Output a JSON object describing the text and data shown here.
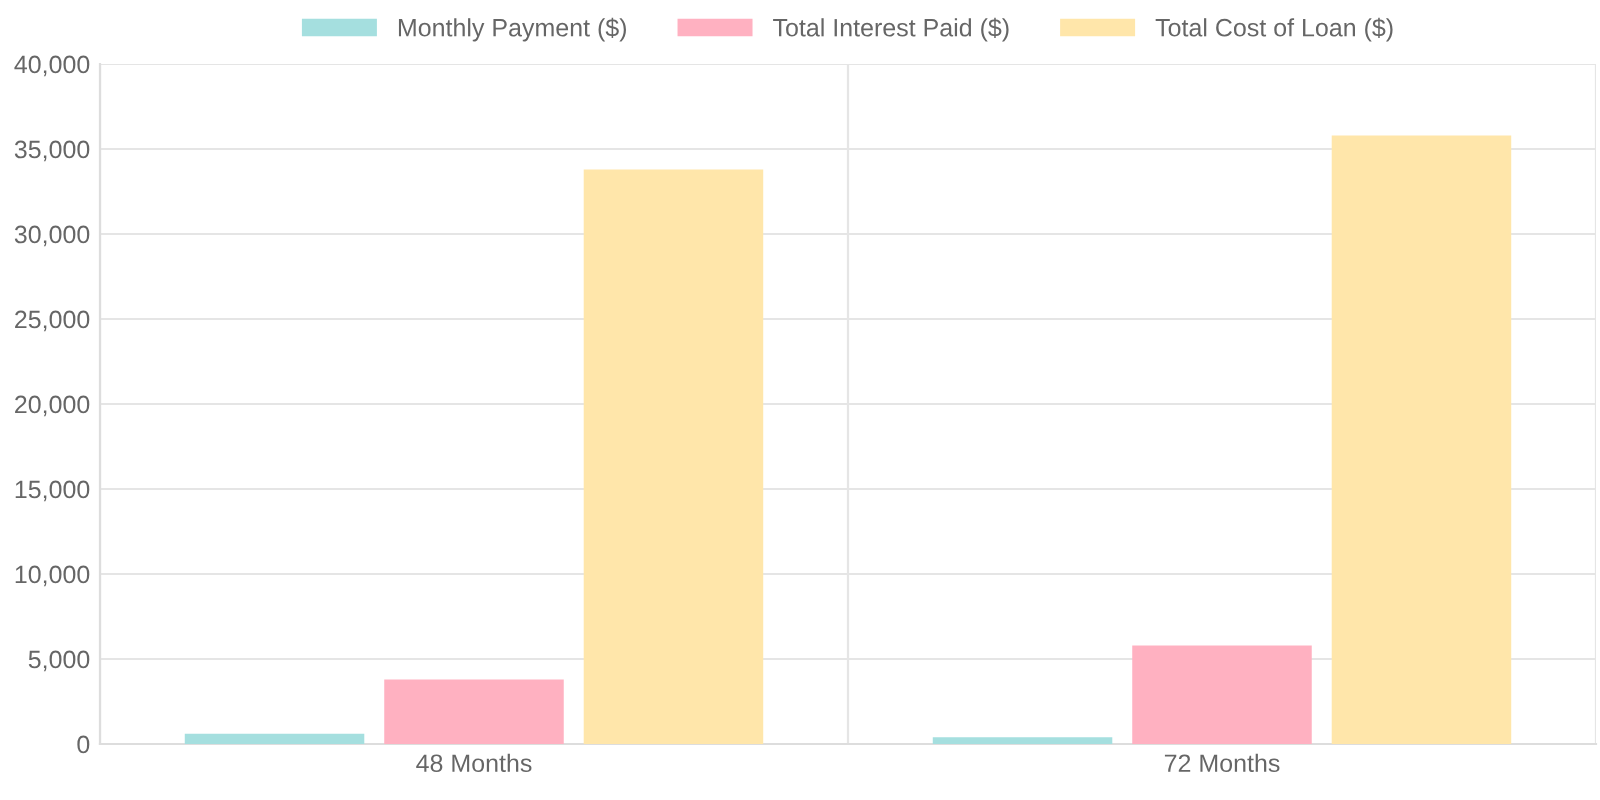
{
  "chart_data": {
    "type": "bar",
    "categories": [
      "48 Months",
      "72 Months"
    ],
    "series": [
      {
        "name": "Monthly Payment ($)",
        "color": "#a5dfdf",
        "values": [
          600,
          400
        ]
      },
      {
        "name": "Total Interest Paid ($)",
        "color": "#ffb1c1",
        "values": [
          3800,
          5800
        ]
      },
      {
        "name": "Total Cost of Loan ($)",
        "color": "#ffe6aa",
        "values": [
          33800,
          35800
        ]
      }
    ],
    "ylim": [
      0,
      40000
    ],
    "yticks": [
      {
        "value": 0,
        "label": "0"
      },
      {
        "value": 5000,
        "label": "5,000"
      },
      {
        "value": 10000,
        "label": "10,000"
      },
      {
        "value": 15000,
        "label": "15,000"
      },
      {
        "value": 20000,
        "label": "20,000"
      },
      {
        "value": 25000,
        "label": "25,000"
      },
      {
        "value": 30000,
        "label": "30,000"
      },
      {
        "value": 35000,
        "label": "35,000"
      },
      {
        "value": 40000,
        "label": "40,000"
      }
    ],
    "grid": true,
    "legend": "top"
  }
}
